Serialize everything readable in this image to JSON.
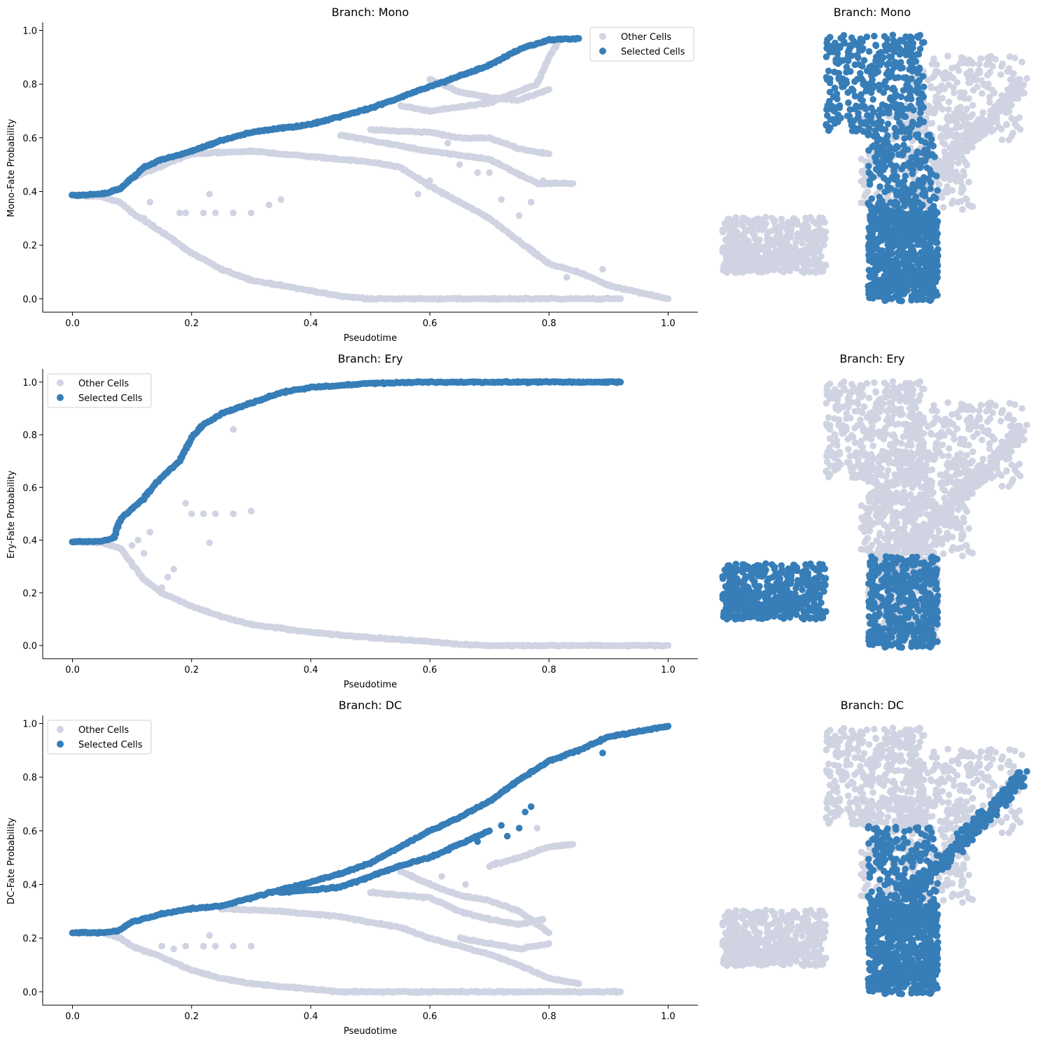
{
  "colors": {
    "other": "#d0d4e2",
    "selected": "#377eb8",
    "axis": "#000000"
  },
  "legend": {
    "other_label": "Other Cells",
    "selected_label": "Selected Cells"
  },
  "chart_data": [
    {
      "type": "scatter",
      "title": "Branch: Mono",
      "xlabel": "Pseudotime",
      "ylabel": "Mono-Fate Probability",
      "xlim": [
        -0.05,
        1.05
      ],
      "ylim": [
        -0.05,
        1.03
      ],
      "xticks": [
        "0.0",
        "0.2",
        "0.4",
        "0.6",
        "0.8",
        "1.0"
      ],
      "yticks": [
        "0.0",
        "0.2",
        "0.4",
        "0.6",
        "0.8",
        "1.0"
      ],
      "legend_position": "upper right",
      "series": [
        {
          "name": "Selected Cells",
          "curves": [
            [
              [
                0.0,
                0.385
              ],
              [
                0.05,
                0.39
              ],
              [
                0.08,
                0.41
              ],
              [
                0.1,
                0.45
              ],
              [
                0.12,
                0.49
              ],
              [
                0.15,
                0.52
              ],
              [
                0.2,
                0.55
              ],
              [
                0.25,
                0.59
              ],
              [
                0.3,
                0.62
              ],
              [
                0.4,
                0.65
              ],
              [
                0.5,
                0.71
              ],
              [
                0.6,
                0.79
              ],
              [
                0.65,
                0.83
              ],
              [
                0.7,
                0.87
              ],
              [
                0.75,
                0.93
              ],
              [
                0.8,
                0.965
              ],
              [
                0.85,
                0.97
              ]
            ]
          ]
        },
        {
          "name": "Other Cells",
          "curves": [
            [
              [
                0.0,
                0.385
              ],
              [
                0.05,
                0.38
              ],
              [
                0.08,
                0.36
              ],
              [
                0.1,
                0.32
              ],
              [
                0.15,
                0.25
              ],
              [
                0.2,
                0.17
              ],
              [
                0.25,
                0.11
              ],
              [
                0.3,
                0.07
              ],
              [
                0.4,
                0.03
              ],
              [
                0.45,
                0.01
              ],
              [
                0.5,
                0.0
              ],
              [
                0.92,
                0.0
              ]
            ],
            [
              [
                0.1,
                0.45
              ],
              [
                0.2,
                0.54
              ],
              [
                0.3,
                0.55
              ],
              [
                0.4,
                0.53
              ],
              [
                0.5,
                0.51
              ],
              [
                0.55,
                0.49
              ],
              [
                0.6,
                0.42
              ],
              [
                0.7,
                0.3
              ],
              [
                0.8,
                0.13
              ],
              [
                0.85,
                0.1
              ],
              [
                0.9,
                0.05
              ],
              [
                1.0,
                0.0
              ]
            ],
            [
              [
                0.45,
                0.61
              ],
              [
                0.55,
                0.57
              ],
              [
                0.6,
                0.55
              ],
              [
                0.7,
                0.52
              ],
              [
                0.78,
                0.43
              ],
              [
                0.84,
                0.43
              ]
            ],
            [
              [
                0.55,
                0.72
              ],
              [
                0.6,
                0.7
              ],
              [
                0.7,
                0.73
              ],
              [
                0.78,
                0.8
              ],
              [
                0.8,
                0.9
              ],
              [
                0.82,
                0.97
              ]
            ],
            [
              [
                0.5,
                0.63
              ],
              [
                0.6,
                0.62
              ],
              [
                0.65,
                0.6
              ],
              [
                0.7,
                0.6
              ],
              [
                0.75,
                0.56
              ],
              [
                0.8,
                0.54
              ]
            ],
            [
              [
                0.6,
                0.82
              ],
              [
                0.65,
                0.77
              ],
              [
                0.7,
                0.75
              ],
              [
                0.75,
                0.74
              ],
              [
                0.8,
                0.78
              ]
            ]
          ],
          "scatter": [
            [
              0.12,
              0.3
            ],
            [
              0.13,
              0.36
            ],
            [
              0.18,
              0.32
            ],
            [
              0.19,
              0.32
            ],
            [
              0.22,
              0.32
            ],
            [
              0.23,
              0.39
            ],
            [
              0.24,
              0.32
            ],
            [
              0.27,
              0.32
            ],
            [
              0.3,
              0.32
            ],
            [
              0.33,
              0.35
            ],
            [
              0.35,
              0.37
            ],
            [
              0.58,
              0.39
            ],
            [
              0.63,
              0.58
            ],
            [
              0.68,
              0.47
            ],
            [
              0.7,
              0.47
            ],
            [
              0.72,
              0.37
            ],
            [
              0.75,
              0.31
            ],
            [
              0.77,
              0.36
            ],
            [
              0.79,
              0.44
            ],
            [
              0.83,
              0.08
            ],
            [
              0.9,
              0.05
            ],
            [
              0.89,
              0.11
            ],
            [
              0.6,
              0.44
            ],
            [
              0.65,
              0.5
            ],
            [
              0.75,
              0.46
            ]
          ]
        }
      ]
    },
    {
      "type": "scatter",
      "title": "Branch: Ery",
      "xlabel": "Pseudotime",
      "ylabel": "Ery-Fate Probability",
      "xlim": [
        -0.05,
        1.05
      ],
      "ylim": [
        -0.05,
        1.05
      ],
      "xticks": [
        "0.0",
        "0.2",
        "0.4",
        "0.6",
        "0.8",
        "1.0"
      ],
      "yticks": [
        "0.0",
        "0.2",
        "0.4",
        "0.6",
        "0.8",
        "1.0"
      ],
      "legend_position": "upper left",
      "series": [
        {
          "name": "Selected Cells",
          "curves": [
            [
              [
                0.0,
                0.395
              ],
              [
                0.05,
                0.395
              ],
              [
                0.07,
                0.41
              ],
              [
                0.08,
                0.48
              ],
              [
                0.1,
                0.52
              ],
              [
                0.12,
                0.56
              ],
              [
                0.15,
                0.64
              ],
              [
                0.18,
                0.7
              ],
              [
                0.2,
                0.79
              ],
              [
                0.22,
                0.84
              ],
              [
                0.25,
                0.88
              ],
              [
                0.3,
                0.92
              ],
              [
                0.35,
                0.96
              ],
              [
                0.4,
                0.98
              ],
              [
                0.5,
                0.995
              ],
              [
                0.6,
                1.0
              ],
              [
                0.7,
                1.0
              ],
              [
                0.8,
                1.0
              ],
              [
                0.92,
                1.0
              ]
            ]
          ]
        },
        {
          "name": "Other Cells",
          "curves": [
            [
              [
                0.0,
                0.395
              ],
              [
                0.05,
                0.39
              ],
              [
                0.08,
                0.37
              ],
              [
                0.1,
                0.31
              ],
              [
                0.12,
                0.25
              ],
              [
                0.15,
                0.2
              ],
              [
                0.2,
                0.15
              ],
              [
                0.25,
                0.11
              ],
              [
                0.3,
                0.08
              ],
              [
                0.4,
                0.05
              ],
              [
                0.5,
                0.03
              ],
              [
                0.6,
                0.015
              ],
              [
                0.65,
                0.005
              ],
              [
                0.7,
                0.0
              ],
              [
                1.0,
                0.0
              ]
            ]
          ],
          "scatter": [
            [
              0.12,
              0.35
            ],
            [
              0.13,
              0.43
            ],
            [
              0.15,
              0.22
            ],
            [
              0.16,
              0.26
            ],
            [
              0.17,
              0.29
            ],
            [
              0.19,
              0.54
            ],
            [
              0.2,
              0.5
            ],
            [
              0.22,
              0.5
            ],
            [
              0.23,
              0.39
            ],
            [
              0.24,
              0.5
            ],
            [
              0.27,
              0.5
            ],
            [
              0.3,
              0.51
            ],
            [
              0.27,
              0.82
            ],
            [
              0.1,
              0.38
            ],
            [
              0.11,
              0.4
            ]
          ]
        }
      ]
    },
    {
      "type": "scatter",
      "title": "Branch: DC",
      "xlabel": "Pseudotime",
      "ylabel": "DC-Fate Probability",
      "xlim": [
        -0.05,
        1.05
      ],
      "ylim": [
        -0.05,
        1.03
      ],
      "xticks": [
        "0.0",
        "0.2",
        "0.4",
        "0.6",
        "0.8",
        "1.0"
      ],
      "yticks": [
        "0.0",
        "0.2",
        "0.4",
        "0.6",
        "0.8",
        "1.0"
      ],
      "legend_position": "upper left",
      "series": [
        {
          "name": "Selected Cells",
          "curves": [
            [
              [
                0.0,
                0.22
              ],
              [
                0.05,
                0.22
              ],
              [
                0.08,
                0.23
              ],
              [
                0.1,
                0.26
              ],
              [
                0.15,
                0.29
              ],
              [
                0.2,
                0.31
              ],
              [
                0.25,
                0.32
              ],
              [
                0.3,
                0.35
              ],
              [
                0.4,
                0.41
              ],
              [
                0.45,
                0.44
              ],
              [
                0.5,
                0.48
              ],
              [
                0.55,
                0.54
              ],
              [
                0.6,
                0.6
              ],
              [
                0.65,
                0.65
              ],
              [
                0.7,
                0.71
              ],
              [
                0.75,
                0.79
              ],
              [
                0.8,
                0.86
              ],
              [
                0.85,
                0.9
              ],
              [
                0.9,
                0.95
              ],
              [
                1.0,
                0.99
              ]
            ],
            [
              [
                0.35,
                0.37
              ],
              [
                0.45,
                0.39
              ],
              [
                0.5,
                0.43
              ],
              [
                0.55,
                0.47
              ],
              [
                0.6,
                0.5
              ],
              [
                0.65,
                0.55
              ],
              [
                0.7,
                0.6
              ]
            ]
          ],
          "scatter": [
            [
              0.72,
              0.62
            ],
            [
              0.73,
              0.58
            ],
            [
              0.75,
              0.61
            ],
            [
              0.76,
              0.67
            ],
            [
              0.77,
              0.69
            ],
            [
              0.68,
              0.56
            ],
            [
              0.89,
              0.89
            ]
          ]
        },
        {
          "name": "Other Cells",
          "curves": [
            [
              [
                0.0,
                0.22
              ],
              [
                0.05,
                0.22
              ],
              [
                0.08,
                0.2
              ],
              [
                0.1,
                0.17
              ],
              [
                0.15,
                0.13
              ],
              [
                0.2,
                0.08
              ],
              [
                0.25,
                0.05
              ],
              [
                0.3,
                0.03
              ],
              [
                0.4,
                0.01
              ],
              [
                0.45,
                0.0
              ],
              [
                0.92,
                0.0
              ]
            ],
            [
              [
                0.25,
                0.31
              ],
              [
                0.35,
                0.3
              ],
              [
                0.45,
                0.28
              ],
              [
                0.55,
                0.24
              ],
              [
                0.6,
                0.2
              ],
              [
                0.65,
                0.17
              ],
              [
                0.7,
                0.14
              ],
              [
                0.75,
                0.1
              ],
              [
                0.8,
                0.05
              ],
              [
                0.85,
                0.03
              ]
            ],
            [
              [
                0.5,
                0.37
              ],
              [
                0.6,
                0.35
              ],
              [
                0.65,
                0.3
              ],
              [
                0.7,
                0.27
              ],
              [
                0.75,
                0.25
              ],
              [
                0.79,
                0.27
              ]
            ],
            [
              [
                0.55,
                0.45
              ],
              [
                0.6,
                0.4
              ],
              [
                0.65,
                0.36
              ],
              [
                0.7,
                0.34
              ],
              [
                0.75,
                0.3
              ],
              [
                0.8,
                0.22
              ]
            ],
            [
              [
                0.65,
                0.2
              ],
              [
                0.7,
                0.18
              ],
              [
                0.75,
                0.16
              ],
              [
                0.8,
                0.18
              ]
            ],
            [
              [
                0.7,
                0.47
              ],
              [
                0.75,
                0.5
              ],
              [
                0.8,
                0.54
              ],
              [
                0.84,
                0.55
              ]
            ]
          ],
          "scatter": [
            [
              0.12,
              0.15
            ],
            [
              0.15,
              0.17
            ],
            [
              0.17,
              0.16
            ],
            [
              0.19,
              0.17
            ],
            [
              0.22,
              0.17
            ],
            [
              0.23,
              0.21
            ],
            [
              0.24,
              0.17
            ],
            [
              0.27,
              0.17
            ],
            [
              0.3,
              0.17
            ],
            [
              0.78,
              0.61
            ],
            [
              0.66,
              0.4
            ],
            [
              0.62,
              0.43
            ]
          ]
        }
      ]
    },
    {
      "type": "scatter",
      "title": "Branch: Mono",
      "embedding": true,
      "highlight": [
        "core",
        "top"
      ]
    },
    {
      "type": "scatter",
      "title": "Branch: Ery",
      "embedding": true,
      "highlight": [
        "left",
        "bottom"
      ]
    },
    {
      "type": "scatter",
      "title": "Branch: DC",
      "embedding": true,
      "highlight": [
        "core",
        "right"
      ]
    }
  ]
}
